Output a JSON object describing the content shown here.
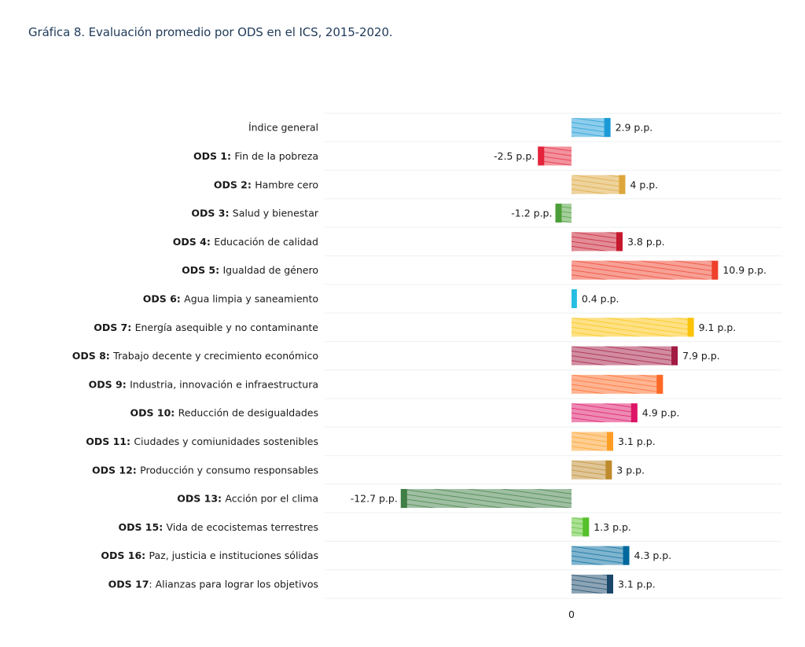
{
  "chart_data": {
    "type": "bar",
    "orientation": "horizontal",
    "title": "Gráfica 8. Evaluación promedio por ODS en el ICS, 2015-2020.",
    "xlabel": "",
    "ylabel": "",
    "xlim": [
      -13.3,
      15.5
    ],
    "grid": true,
    "x_ticks": [
      "0"
    ],
    "unit_suffix": " p.p.",
    "categories": [
      {
        "prefix": "",
        "name": "Índice general"
      },
      {
        "prefix": "ODS 1: ",
        "name": " Fin de la pobreza"
      },
      {
        "prefix": "ODS 2: ",
        "name": " Hambre cero"
      },
      {
        "prefix": "ODS 3: ",
        "name": " Salud y bienestar"
      },
      {
        "prefix": "ODS 4: ",
        "name": " Educación de calidad"
      },
      {
        "prefix": "ODS 5: ",
        "name": " Igualdad de género"
      },
      {
        "prefix": "ODS 6: ",
        "name": " Agua limpia y saneamiento"
      },
      {
        "prefix": "ODS 7: ",
        "name": " Energía asequible y no contaminante"
      },
      {
        "prefix": "ODS 8: ",
        "name": " Trabajo decente y crecimiento económico"
      },
      {
        "prefix": "ODS 9: ",
        "name": "Industria, innovación e infraestructura"
      },
      {
        "prefix": "ODS 10: ",
        "name": "Reducción de desigualdades"
      },
      {
        "prefix": "ODS 11: ",
        "name": " Ciudades y comiunidades sostenibles"
      },
      {
        "prefix": "ODS 12: ",
        "name": "Producción y consumo responsables"
      },
      {
        "prefix": "ODS 13: ",
        "name": "Acción por el clima"
      },
      {
        "prefix": "ODS 15: ",
        "name": " Vida de ecocistemas terrestres"
      },
      {
        "prefix": "ODS 16: ",
        "name": "Paz, justicia e instituciones sólidas"
      },
      {
        "prefix": "ODS 17",
        "name": ": Alianzas para lograr los objetivos"
      }
    ],
    "values": [
      2.9,
      -2.5,
      4,
      -1.2,
      3.8,
      10.9,
      0.4,
      9.1,
      7.9,
      6.8,
      4.9,
      3.1,
      3,
      -12.7,
      1.3,
      4.3,
      3.1
    ],
    "value_labels": [
      "2.9 p.p.",
      "-2.5 p.p.",
      "4 p.p.",
      "-1.2 p.p.",
      "3.8 p.p.",
      "10.9 p.p.",
      "0.4 p.p.",
      "9.1 p.p.",
      "7.9 p.p.",
      "",
      "4.9 p.p.",
      "3.1 p.p.",
      "3 p.p.",
      "-12.7 p.p.",
      "1.3 p.p.",
      "4.3 p.p.",
      "3.1 p.p."
    ],
    "colors": [
      "#1a9bd7",
      "#e5243b",
      "#dda63a",
      "#4c9f38",
      "#c5192d",
      "#ef402b",
      "#26bde2",
      "#fcc30b",
      "#a21942",
      "#fd6925",
      "#dd1367",
      "#fd9d24",
      "#bf8b2e",
      "#3f7e44",
      "#56c02b",
      "#00689d",
      "#19486a"
    ]
  }
}
